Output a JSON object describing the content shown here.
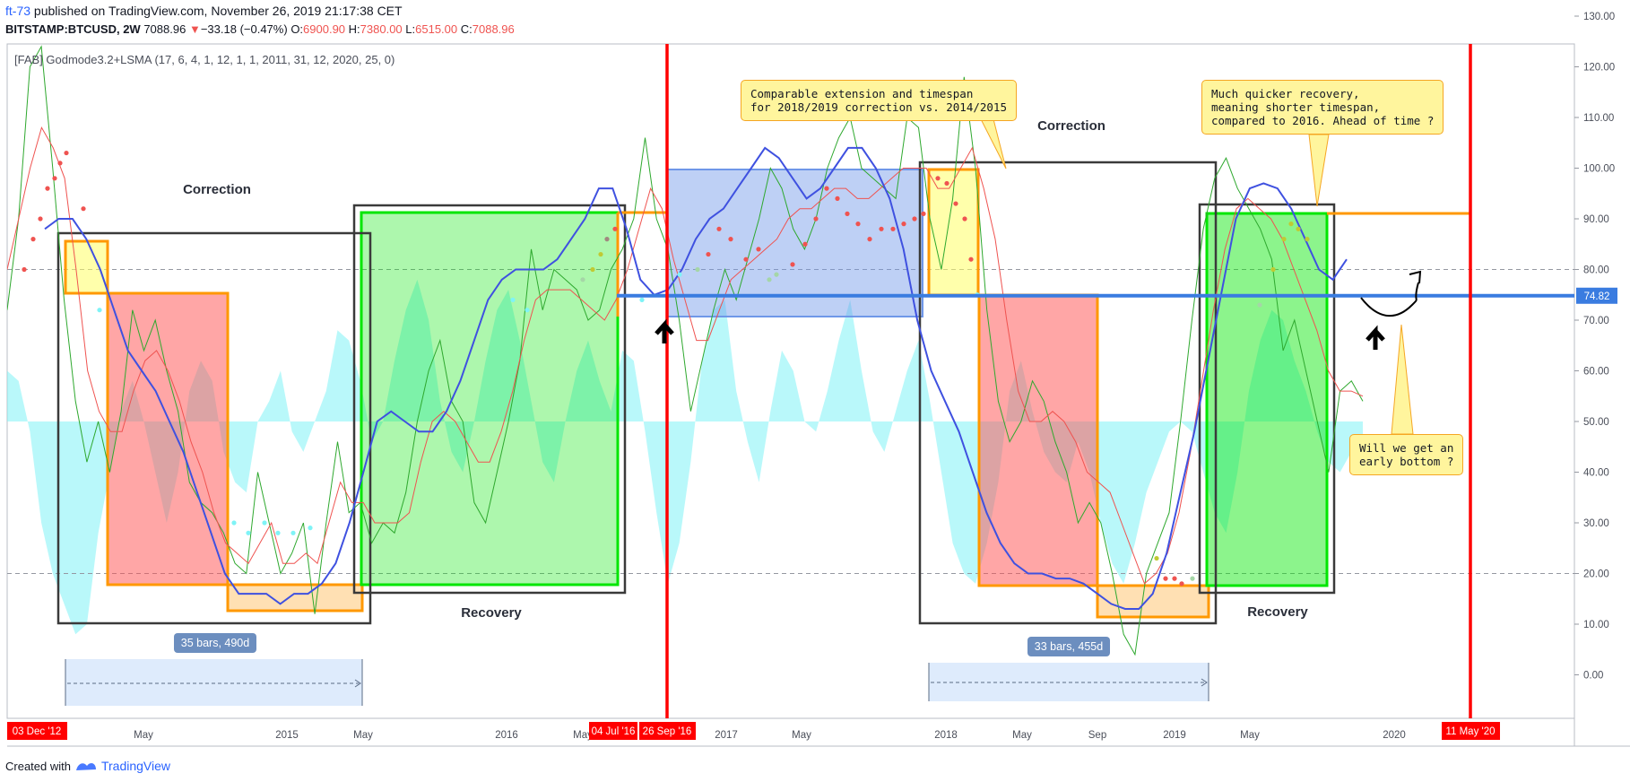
{
  "header": {
    "author": "ft-73",
    "published": "published on TradingView.com, November 26, 2019 21:17:38 CET",
    "symbol": "BITSTAMP:BTCUSD, 2W",
    "price": "7088.96",
    "change_arrow": "▼",
    "change": "−33.18 (−0.47%)",
    "o_label": "O:",
    "o": "6900.90",
    "h_label": "H:",
    "h": "7380.00",
    "l_label": "L:",
    "l": "6515.00",
    "c_label": "C:",
    "c": "7088.96"
  },
  "indicator_label": "[FAB] Godmode3.2+LSMA (17, 6, 4, 1, 12, 1, 1, 2011, 31, 12, 2020, 25, 0)",
  "annotations": {
    "correction_left": "Correction",
    "correction_right": "Correction",
    "recovery_left": "Recovery",
    "recovery_right": "Recovery",
    "bars_left": "35 bars, 490d",
    "bars_right": "33 bars, 455d",
    "note_extension": "Comparable extension and timespan\nfor 2018/2019 correction vs. 2014/2015",
    "note_quicker": "Much quicker recovery,\nmeaning shorter timespan,\ncompared to 2016. Ahead of time ?",
    "note_bottom": "Will we get an\nearly bottom ?"
  },
  "date_flags": {
    "start": "03 Dec '12",
    "jul": "04 Jul '16",
    "sep": "26 Sep '16",
    "may20": "11 May '20"
  },
  "footer": {
    "created": "Created with",
    "brand": "TradingView"
  },
  "colors": {
    "bull": "#00e600",
    "bear": "#ff3b3b",
    "orange": "#ff9800",
    "blue_zone": "#6f97e8",
    "cyan_area": "#7ff3f6",
    "price_line": "#3a7ce0"
  },
  "chart_data": {
    "type": "line",
    "ylim": [
      -7,
      131
    ],
    "y_ticks": [
      "130.00",
      "120.00",
      "110.00",
      "100.00",
      "90.00",
      "80.00",
      "70.00",
      "60.00",
      "50.00",
      "40.00",
      "30.00",
      "20.00",
      "10.00",
      "0.00"
    ],
    "x_ticks": [
      "May",
      "2015",
      "May",
      "2016",
      "May",
      "2017",
      "May",
      "2018",
      "May",
      "Sep",
      "2019",
      "May",
      "2020"
    ],
    "current_value": 74.82,
    "current_label": "74.82",
    "hlines_dashed": [
      80,
      20
    ],
    "series": [
      {
        "name": "oscillator-green",
        "color": "#2ea82e",
        "values": [
          72,
          90,
          120,
          124,
          100,
          74,
          54,
          42,
          50,
          40,
          52,
          72,
          64,
          70,
          60,
          52,
          38,
          34,
          32,
          28,
          22,
          20,
          40,
          30,
          20,
          24,
          30,
          12,
          30,
          46,
          32,
          34,
          26,
          30,
          28,
          36,
          50,
          60,
          66,
          54,
          50,
          34,
          30,
          40,
          50,
          62,
          84,
          72,
          80,
          78,
          76,
          70,
          72,
          80,
          84,
          90,
          106,
          90,
          84,
          70,
          52,
          62,
          72,
          80,
          74,
          82,
          90,
          100,
          96,
          88,
          84,
          90,
          100,
          106,
          110,
          100,
          98,
          96,
          94,
          110,
          108,
          90,
          80,
          94,
          118,
          100,
          72,
          54,
          46,
          50,
          58,
          54,
          46,
          40,
          30,
          34,
          30,
          20,
          8,
          4,
          20,
          26,
          32,
          50,
          70,
          88,
          98,
          102,
          96,
          92,
          88,
          82,
          64,
          70,
          60,
          50,
          40,
          56,
          58,
          54
        ]
      },
      {
        "name": "oscillator-red",
        "color": "#ef5350",
        "values": [
          80,
          90,
          100,
          108,
          104,
          98,
          80,
          60,
          52,
          48,
          48,
          56,
          62,
          64,
          60,
          54,
          46,
          40,
          32,
          26,
          24,
          22,
          26,
          30,
          22,
          22,
          24,
          22,
          30,
          38,
          34,
          34,
          30,
          30,
          30,
          32,
          42,
          50,
          52,
          50,
          46,
          42,
          42,
          48,
          56,
          66,
          74,
          76,
          76,
          76,
          74,
          72,
          70,
          74,
          80,
          88,
          96,
          92,
          82,
          74,
          66,
          66,
          72,
          78,
          80,
          82,
          84,
          86,
          90,
          92,
          92,
          94,
          96,
          96,
          94,
          94,
          96,
          98,
          100,
          100,
          100,
          96,
          96,
          100,
          104,
          96,
          86,
          70,
          56,
          50,
          50,
          52,
          50,
          46,
          40,
          38,
          36,
          30,
          24,
          18,
          20,
          24,
          32,
          44,
          58,
          72,
          84,
          92,
          94,
          92,
          90,
          86,
          80,
          74,
          68,
          60,
          56,
          56,
          55
        ]
      },
      {
        "name": "lsma-blue",
        "color": "#3f51e0",
        "values": [
          88,
          90,
          90,
          86,
          80,
          72,
          64,
          60,
          56,
          50,
          44,
          36,
          28,
          20,
          16,
          16,
          16,
          14,
          16,
          16,
          18,
          22,
          30,
          40,
          50,
          52,
          50,
          48,
          48,
          52,
          58,
          66,
          74,
          78,
          80,
          80,
          80,
          82,
          86,
          90,
          96,
          96,
          88,
          78,
          75,
          76,
          80,
          86,
          90,
          92,
          96,
          100,
          104,
          102,
          98,
          94,
          96,
          100,
          104,
          104,
          100,
          94,
          84,
          70,
          60,
          54,
          48,
          40,
          32,
          26,
          22,
          20,
          20,
          19,
          19,
          18,
          16,
          14,
          13,
          13,
          16,
          24,
          36,
          48,
          62,
          76,
          90,
          96,
          97,
          96,
          92,
          86,
          80,
          78,
          82
        ]
      }
    ]
  }
}
